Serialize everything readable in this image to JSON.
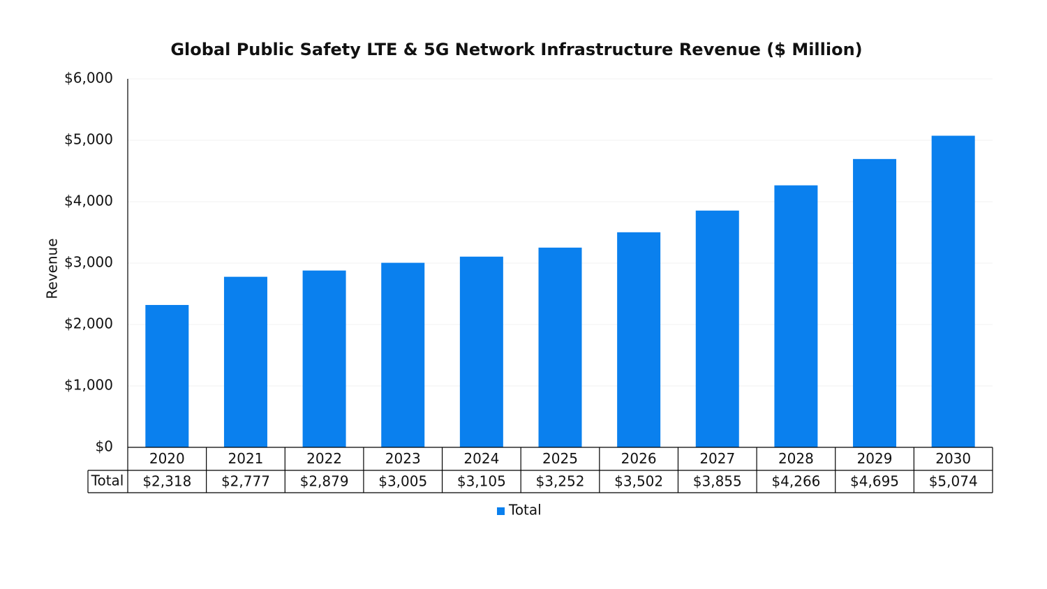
{
  "chart_data": {
    "type": "bar",
    "title": "Global Public Safety LTE & 5G Network Infrastructure Revenue ($ Million)",
    "y_label": "Revenue",
    "categories": [
      "2020",
      "2021",
      "2022",
      "2023",
      "2024",
      "2025",
      "2026",
      "2027",
      "2028",
      "2029",
      "2030"
    ],
    "series": [
      {
        "name": "Total",
        "color": "#0a80ee",
        "values": [
          2318,
          2777,
          2879,
          3005,
          3105,
          3252,
          3502,
          3855,
          4266,
          4695,
          5074
        ],
        "value_labels": [
          "$2,318",
          "$2,777",
          "$2,879",
          "$3,005",
          "$3,105",
          "$3,252",
          "$3,502",
          "$3,855",
          "$4,266",
          "$4,695",
          "$5,074"
        ]
      }
    ],
    "ylim": [
      0,
      6000
    ],
    "yticks": [
      {
        "value": 0,
        "label": "$0"
      },
      {
        "value": 1000,
        "label": "$1,000"
      },
      {
        "value": 2000,
        "label": "$2,000"
      },
      {
        "value": 3000,
        "label": "$3,000"
      },
      {
        "value": 4000,
        "label": "$4,000"
      },
      {
        "value": 5000,
        "label": "$5,000"
      },
      {
        "value": 6000,
        "label": "$6,000"
      }
    ],
    "grid": true,
    "legend": "bottom"
  }
}
